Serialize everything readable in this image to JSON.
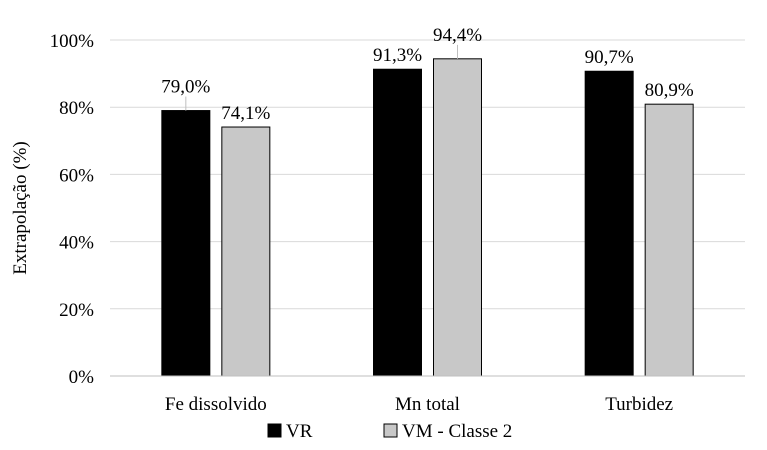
{
  "chart_data": {
    "type": "bar",
    "title": "",
    "xlabel": "",
    "ylabel": "Extrapolação  (%)",
    "ylim": [
      0,
      100
    ],
    "yticks": [
      0,
      20,
      40,
      60,
      80,
      100
    ],
    "ytick_labels": [
      "0%",
      "20%",
      "40%",
      "60%",
      "80%",
      "100%"
    ],
    "categories": [
      "Fe dissolvido",
      "Mn total",
      "Turbidez"
    ],
    "grid": "horizontal",
    "legend_position": "bottom",
    "series": [
      {
        "name": "VR",
        "color": "#000000",
        "values": [
          79.0,
          91.3,
          90.7
        ],
        "labels": [
          "79,0%",
          "91,3%",
          "90,7%"
        ]
      },
      {
        "name": "VM - Classe 2",
        "color": "#c8c8c8",
        "values": [
          74.1,
          94.4,
          80.9
        ],
        "labels": [
          "74,1%",
          "94,4%",
          "80,9%"
        ]
      }
    ]
  }
}
